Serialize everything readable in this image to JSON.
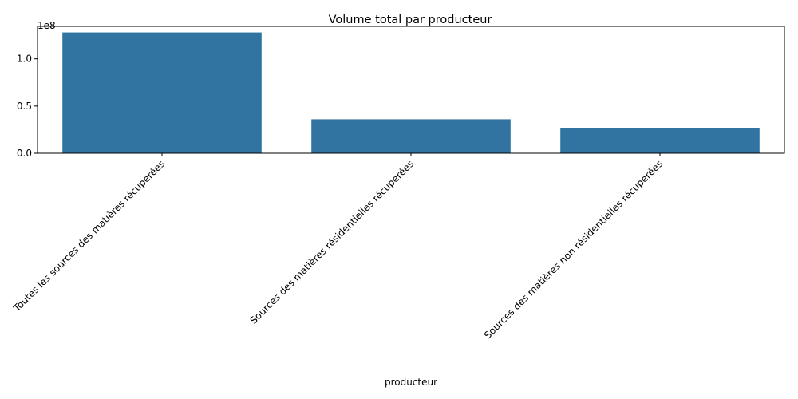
{
  "chart_data": {
    "type": "bar",
    "title": "Volume total par producteur",
    "xlabel": "producteur",
    "ylabel": "",
    "offset_text": "1e8",
    "categories": [
      "Toutes les sources des matières récupérées",
      "Sources des matières résidentielles récupérées",
      "Sources des matières non résidentielles récupérées"
    ],
    "values": [
      128000000,
      36000000,
      27000000
    ],
    "ylim": [
      0,
      134400000
    ],
    "yticks": [
      0,
      50000000,
      100000000
    ],
    "ytick_labels": [
      "0.0",
      "0.5",
      "1.0"
    ],
    "bar_color": "#3274a1",
    "grid": false,
    "legend": "none"
  }
}
